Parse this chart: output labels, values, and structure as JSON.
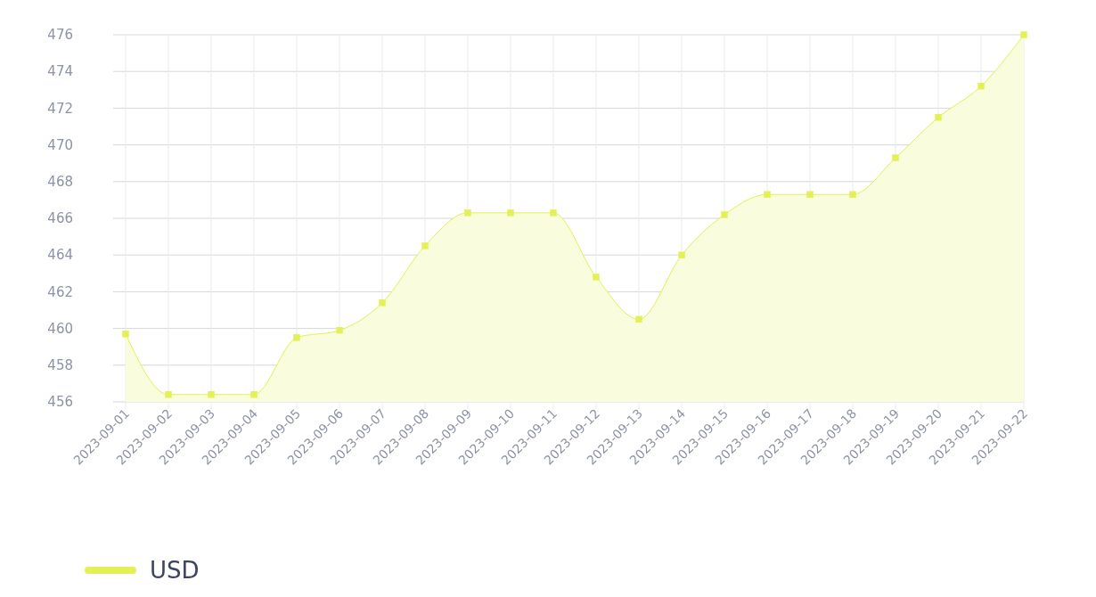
{
  "chart_data": {
    "type": "area",
    "categories": [
      "2023-09-01",
      "2023-09-02",
      "2023-09-03",
      "2023-09-04",
      "2023-09-05",
      "2023-09-06",
      "2023-09-07",
      "2023-09-08",
      "2023-09-09",
      "2023-09-10",
      "2023-09-11",
      "2023-09-12",
      "2023-09-13",
      "2023-09-14",
      "2023-09-15",
      "2023-09-16",
      "2023-09-17",
      "2023-09-18",
      "2023-09-19",
      "2023-09-20",
      "2023-09-21",
      "2023-09-22"
    ],
    "series": [
      {
        "name": "USD",
        "color": "#e3f155",
        "values": [
          459.7,
          456.4,
          456.4,
          456.4,
          459.5,
          459.9,
          461.4,
          464.5,
          466.3,
          466.3,
          466.3,
          462.8,
          460.5,
          464.0,
          466.2,
          467.3,
          467.3,
          467.3,
          469.3,
          471.5,
          473.2,
          476.0
        ]
      }
    ],
    "ylim": [
      456,
      476
    ],
    "yticks": [
      456,
      458,
      460,
      462,
      464,
      466,
      468,
      470,
      472,
      474,
      476
    ],
    "grid": true,
    "legend": "bottom left",
    "marker": "square"
  }
}
